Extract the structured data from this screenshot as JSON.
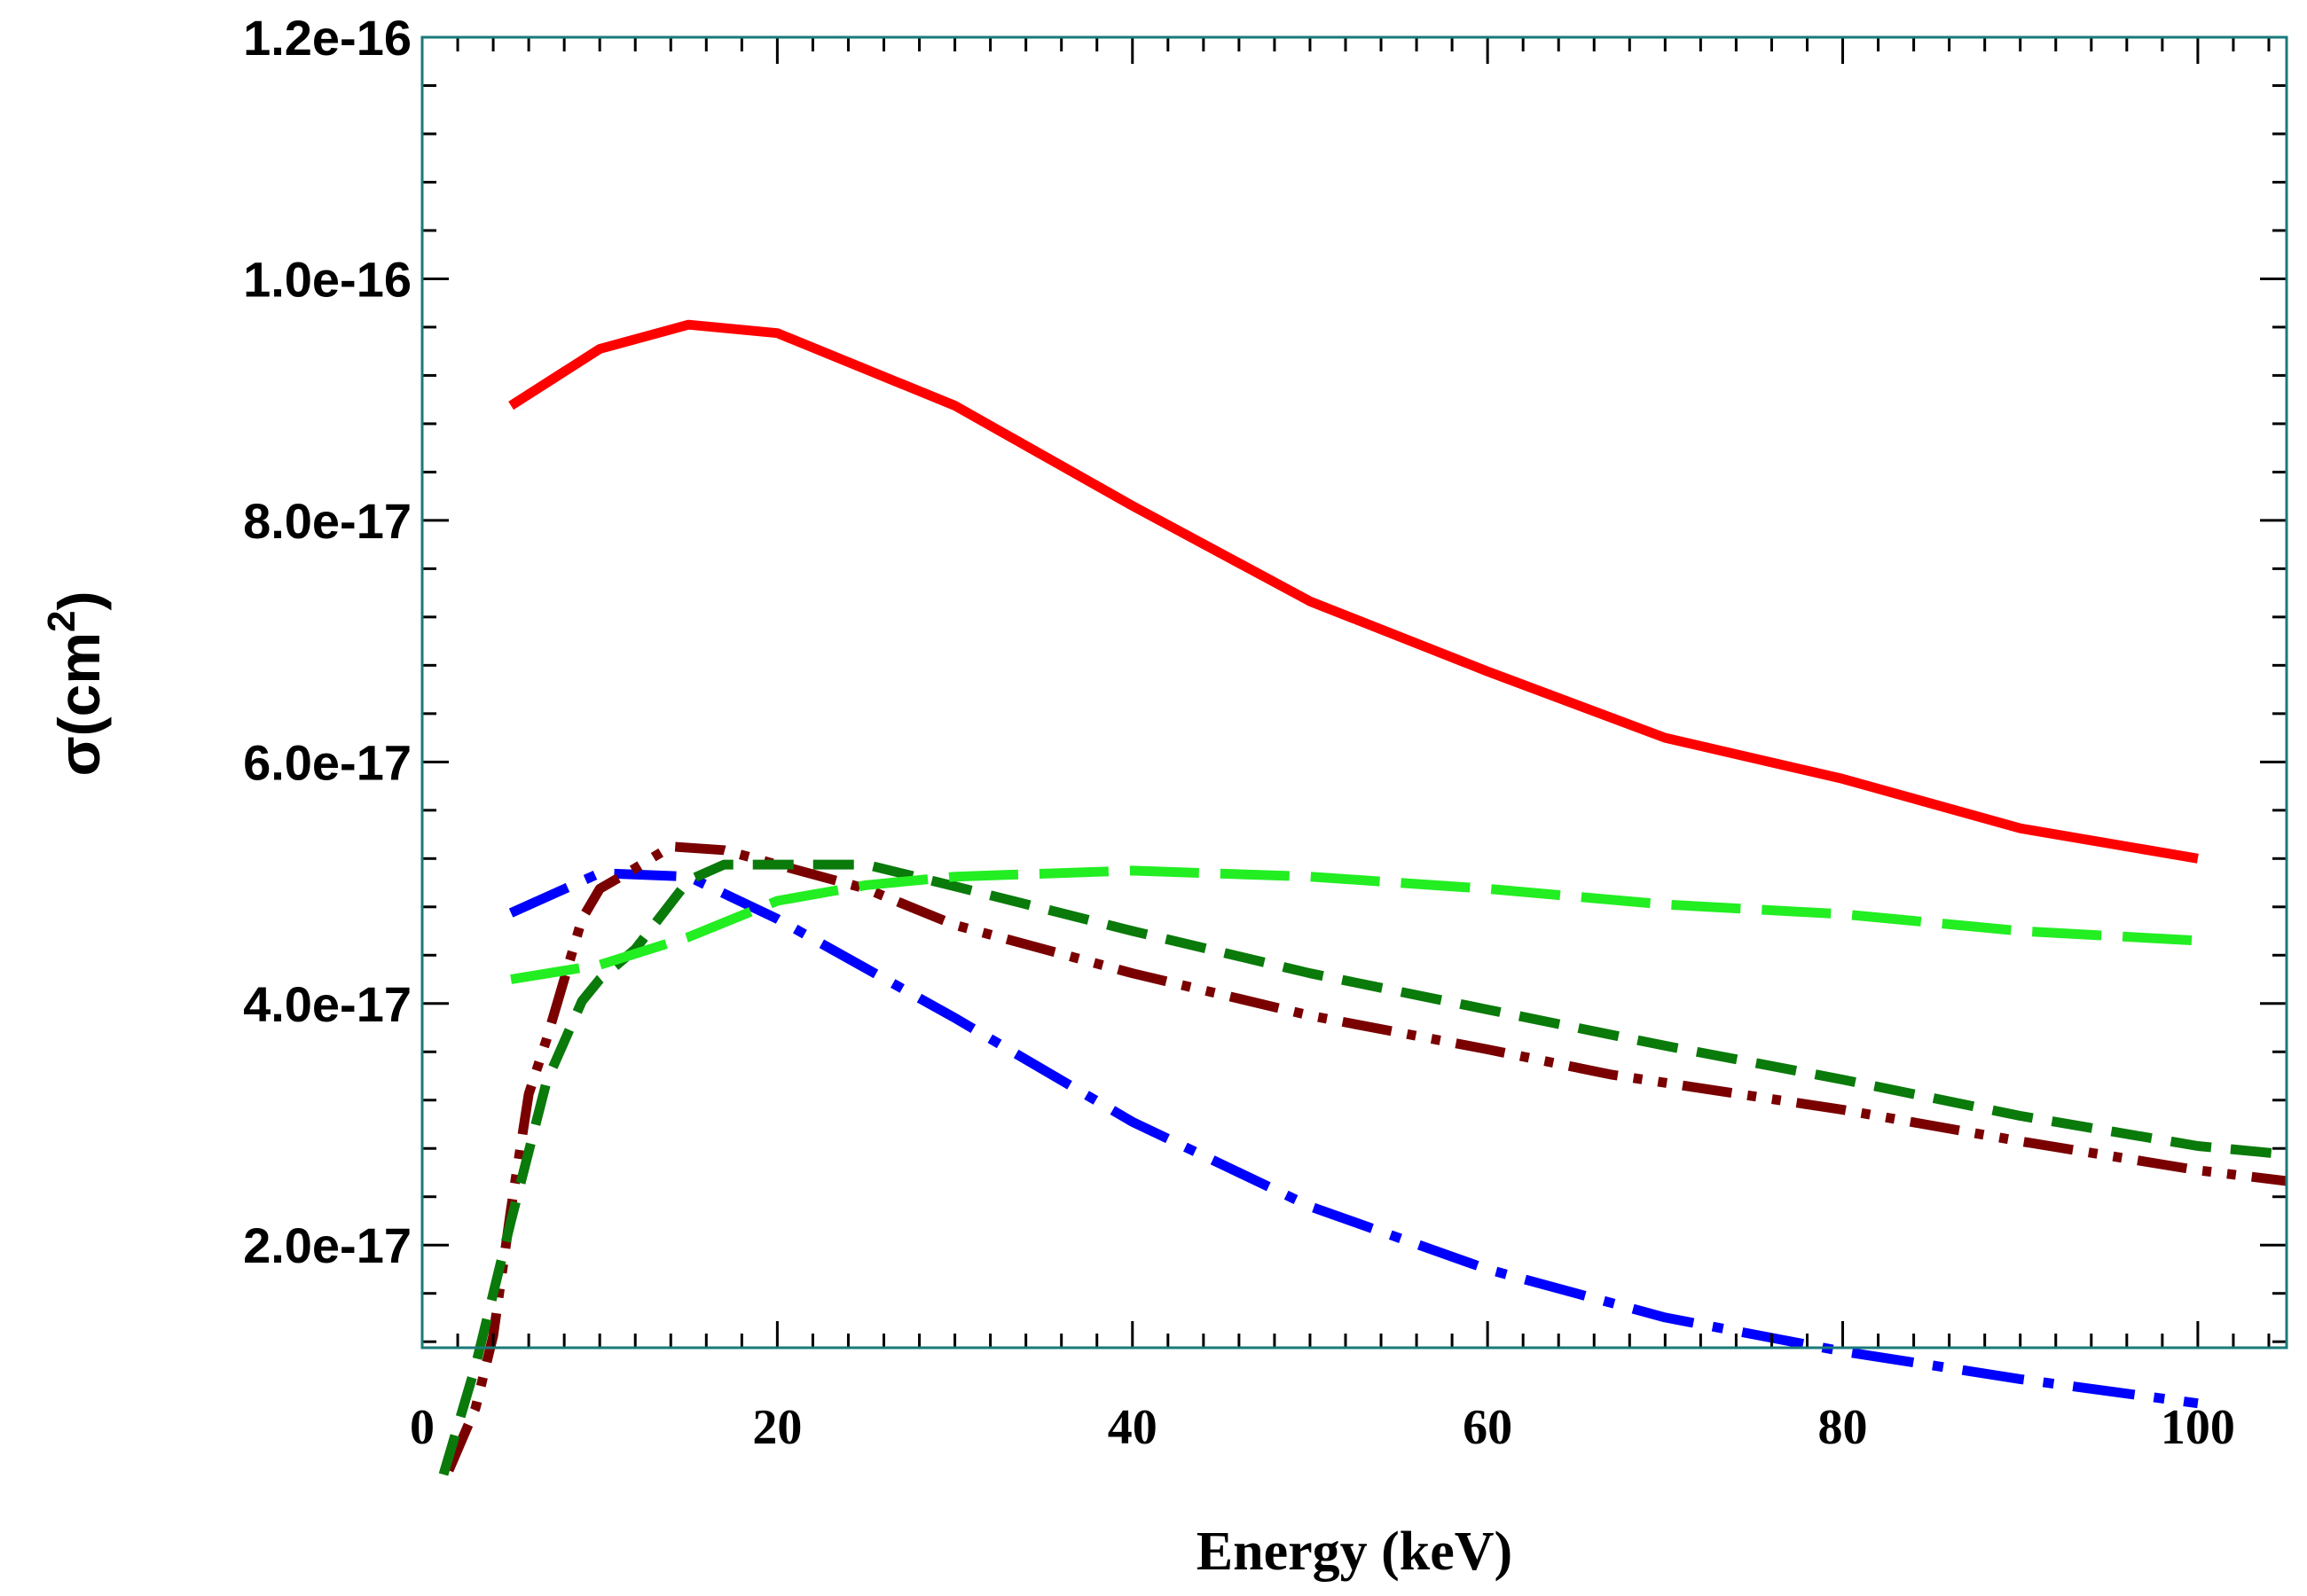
{
  "chart_data": {
    "type": "line",
    "title": "",
    "xlabel": "Energy (keV)",
    "ylabel_base": "σ(cm",
    "ylabel_sup": "2",
    "ylabel_close": ")",
    "xlim": [
      0,
      105
    ],
    "ylim": [
      1.15e-17,
      1.2e-16
    ],
    "xticks": [
      0,
      20,
      40,
      60,
      80,
      100
    ],
    "xtick_labels": [
      "0",
      "20",
      "40",
      "60",
      "80",
      "100"
    ],
    "yticks": [
      2e-17,
      4e-17,
      6e-17,
      8e-17,
      1e-16,
      1.2e-16
    ],
    "ytick_labels": [
      "2.0e-17",
      "4.0e-17",
      "6.0e-17",
      "8.0e-17",
      "1.0e-16",
      "1.2e-16"
    ],
    "x_minor_step": 2,
    "y_minor_step": 4e-18,
    "grid": false,
    "frame_color": "#1a7a7a",
    "series": [
      {
        "name": "red-solid",
        "color": "#ff0000",
        "dash": "solid",
        "x": [
          5,
          10,
          15,
          20,
          30,
          40,
          50,
          60,
          70,
          80,
          90,
          100
        ],
        "y": [
          8.95e-17,
          9.42e-17,
          9.62e-17,
          9.55e-17,
          8.95e-17,
          8.12e-17,
          7.33e-17,
          6.75e-17,
          6.2e-17,
          5.86e-17,
          5.45e-17,
          5.2e-17
        ]
      },
      {
        "name": "blue-dash-dot",
        "color": "#0000ff",
        "dash": "dashdot",
        "x": [
          5,
          10,
          15,
          20,
          30,
          40,
          50,
          60,
          70,
          80,
          90,
          100
        ],
        "y": [
          4.75e-17,
          5.08e-17,
          5.05e-17,
          4.7e-17,
          3.88e-17,
          3.02e-17,
          2.32e-17,
          1.8e-17,
          1.4e-17,
          1.12e-17,
          8.9e-18,
          6.9e-18
        ]
      },
      {
        "name": "darkred-dash-dot-dot",
        "color": "#7a0000",
        "dash": "dashdotdot",
        "x": [
          1.5,
          3,
          4,
          5,
          6,
          7,
          9,
          10,
          12,
          14,
          17,
          20,
          25,
          30,
          40,
          50,
          60,
          67,
          80,
          90,
          100,
          105
        ],
        "y": [
          1.35e-18,
          6.5e-18,
          1.25e-17,
          2.3e-17,
          3.25e-17,
          3.7e-17,
          4.7e-17,
          4.95e-17,
          5.12e-17,
          5.3e-17,
          5.27e-17,
          5.15e-17,
          4.95e-17,
          4.65e-17,
          4.25e-17,
          3.9e-17,
          3.62e-17,
          3.41e-17,
          3.12e-17,
          2.86e-17,
          2.62e-17,
          2.53e-17
        ]
      },
      {
        "name": "darkgreen-dashed",
        "color": "#0a7a0a",
        "dash": "dashed",
        "x": [
          1.2,
          3,
          5,
          7,
          9,
          10,
          12,
          15,
          17,
          20,
          25,
          30,
          40,
          50,
          60,
          70,
          80,
          90,
          100,
          105
        ],
        "y": [
          1e-18,
          1e-17,
          2.2e-17,
          3.35e-17,
          4.02e-17,
          4.2e-17,
          4.45e-17,
          5.02e-17,
          5.15e-17,
          5.15e-17,
          5.15e-17,
          4.97e-17,
          4.6e-17,
          4.25e-17,
          3.95e-17,
          3.65e-17,
          3.37e-17,
          3.07e-17,
          2.82e-17,
          2.75e-17
        ]
      },
      {
        "name": "lime-long-dashed",
        "color": "#22ee22",
        "dash": "longdash",
        "x": [
          5,
          10,
          15,
          20,
          25,
          30,
          40,
          50,
          60,
          70,
          80,
          90,
          100
        ],
        "y": [
          4.2e-17,
          4.32e-17,
          4.55e-17,
          4.85e-17,
          4.98e-17,
          5.05e-17,
          5.1e-17,
          5.05e-17,
          4.95e-17,
          4.82e-17,
          4.74e-17,
          4.6e-17,
          4.52e-17
        ]
      }
    ]
  }
}
